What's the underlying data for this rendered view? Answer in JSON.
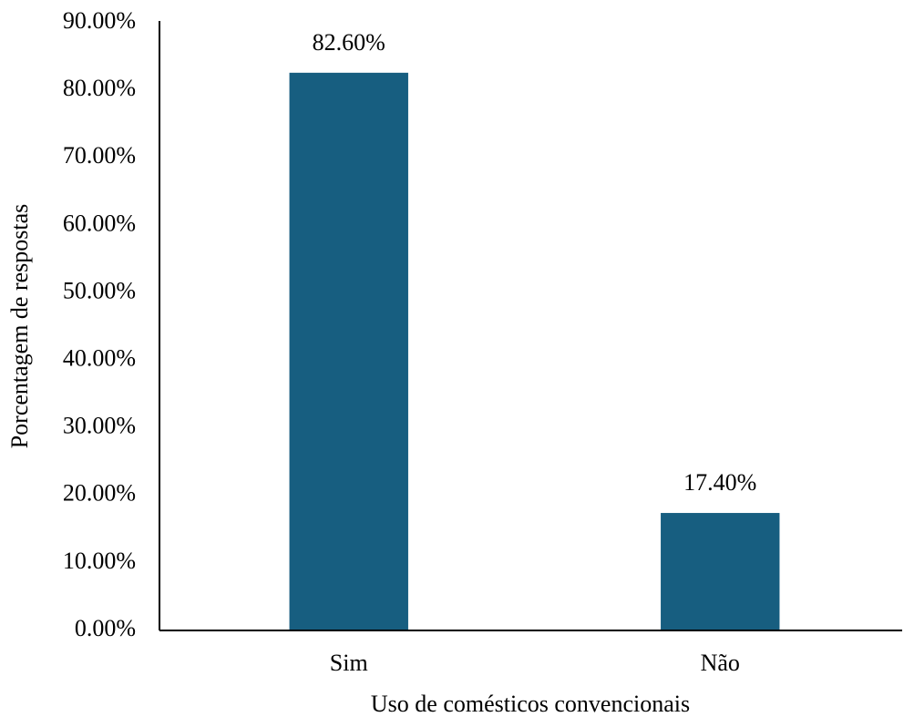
{
  "chart_data": {
    "type": "bar",
    "x_label": "Uso de comésticos convencionais",
    "y_label": "Porcentagem de respostas",
    "categories": [
      "Sim",
      "Não"
    ],
    "values": [
      82.6,
      17.4
    ],
    "value_labels": [
      "82.60%",
      "17.40%"
    ],
    "color": "#175e80",
    "ylim": [
      0,
      90
    ],
    "yticks": [
      {
        "value": 0,
        "label": "0.00%"
      },
      {
        "value": 10,
        "label": "10.00%"
      },
      {
        "value": 20,
        "label": "20.00%"
      },
      {
        "value": 30,
        "label": "30.00%"
      },
      {
        "value": 40,
        "label": "40.00%"
      },
      {
        "value": 50,
        "label": "50.00%"
      },
      {
        "value": 60,
        "label": "60.00%"
      },
      {
        "value": 70,
        "label": "70.00%"
      },
      {
        "value": 80,
        "label": "80.00%"
      },
      {
        "value": 90,
        "label": "90.00%"
      }
    ],
    "grid": false
  }
}
